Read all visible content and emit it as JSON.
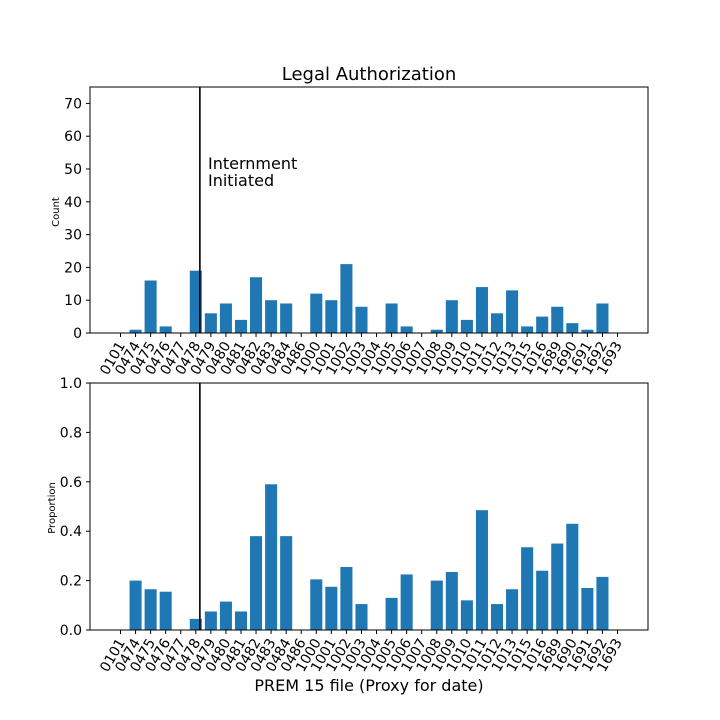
{
  "chart_data": [
    {
      "type": "bar",
      "title": "Legal Authorization",
      "ylabel": "Count",
      "xlabel": "",
      "ylim": [
        0,
        75
      ],
      "yticks": [
        0,
        10,
        20,
        30,
        40,
        50,
        60,
        70
      ],
      "categories": [
        "0101",
        "0474",
        "0475",
        "0476",
        "0477",
        "0478",
        "0479",
        "0480",
        "0481",
        "0482",
        "0483",
        "0484",
        "0486",
        "1000",
        "1001",
        "1002",
        "1003",
        "1004",
        "1005",
        "1006",
        "1007",
        "1008",
        "1009",
        "1010",
        "1011",
        "1012",
        "1013",
        "1015",
        "1016",
        "1689",
        "1690",
        "1691",
        "1692",
        "1693"
      ],
      "values": [
        0,
        1,
        16,
        2,
        0,
        19,
        6,
        9,
        4,
        17,
        10,
        9,
        0,
        12,
        10,
        21,
        8,
        0,
        9,
        2,
        0,
        1,
        10,
        4,
        14,
        6,
        13,
        2,
        5,
        8,
        3,
        1,
        9,
        0
      ],
      "annotation": {
        "line1": "Internment",
        "line2": "Initiated"
      },
      "bar_color": "#1f77b4"
    },
    {
      "type": "bar",
      "title": "",
      "ylabel": "Proportion",
      "xlabel": "PREM 15 file (Proxy for date)",
      "ylim": [
        0,
        1.0
      ],
      "yticks": [
        "0.0",
        "0.2",
        "0.4",
        "0.6",
        "0.8",
        "1.0"
      ],
      "categories": [
        "0101",
        "0474",
        "0475",
        "0476",
        "0477",
        "0478",
        "0479",
        "0480",
        "0481",
        "0482",
        "0483",
        "0484",
        "0486",
        "1000",
        "1001",
        "1002",
        "1003",
        "1004",
        "1005",
        "1006",
        "1007",
        "1008",
        "1009",
        "1010",
        "1011",
        "1012",
        "1013",
        "1015",
        "1016",
        "1689",
        "1690",
        "1691",
        "1692",
        "1693"
      ],
      "values": [
        0,
        0.2,
        0.165,
        0.155,
        0,
        0.045,
        0.075,
        0.115,
        0.075,
        0.38,
        0.59,
        0.38,
        0,
        0.205,
        0.175,
        0.255,
        0.105,
        0,
        0.13,
        0.225,
        0,
        0.2,
        0.235,
        0.12,
        0.485,
        0.105,
        0.165,
        0.335,
        0.24,
        0.35,
        0.43,
        0.17,
        0.215,
        0
      ],
      "bar_color": "#1f77b4"
    }
  ],
  "event_marker_category": "0478",
  "colors": {
    "bars": "#1f77b4",
    "axes": "#000000"
  }
}
